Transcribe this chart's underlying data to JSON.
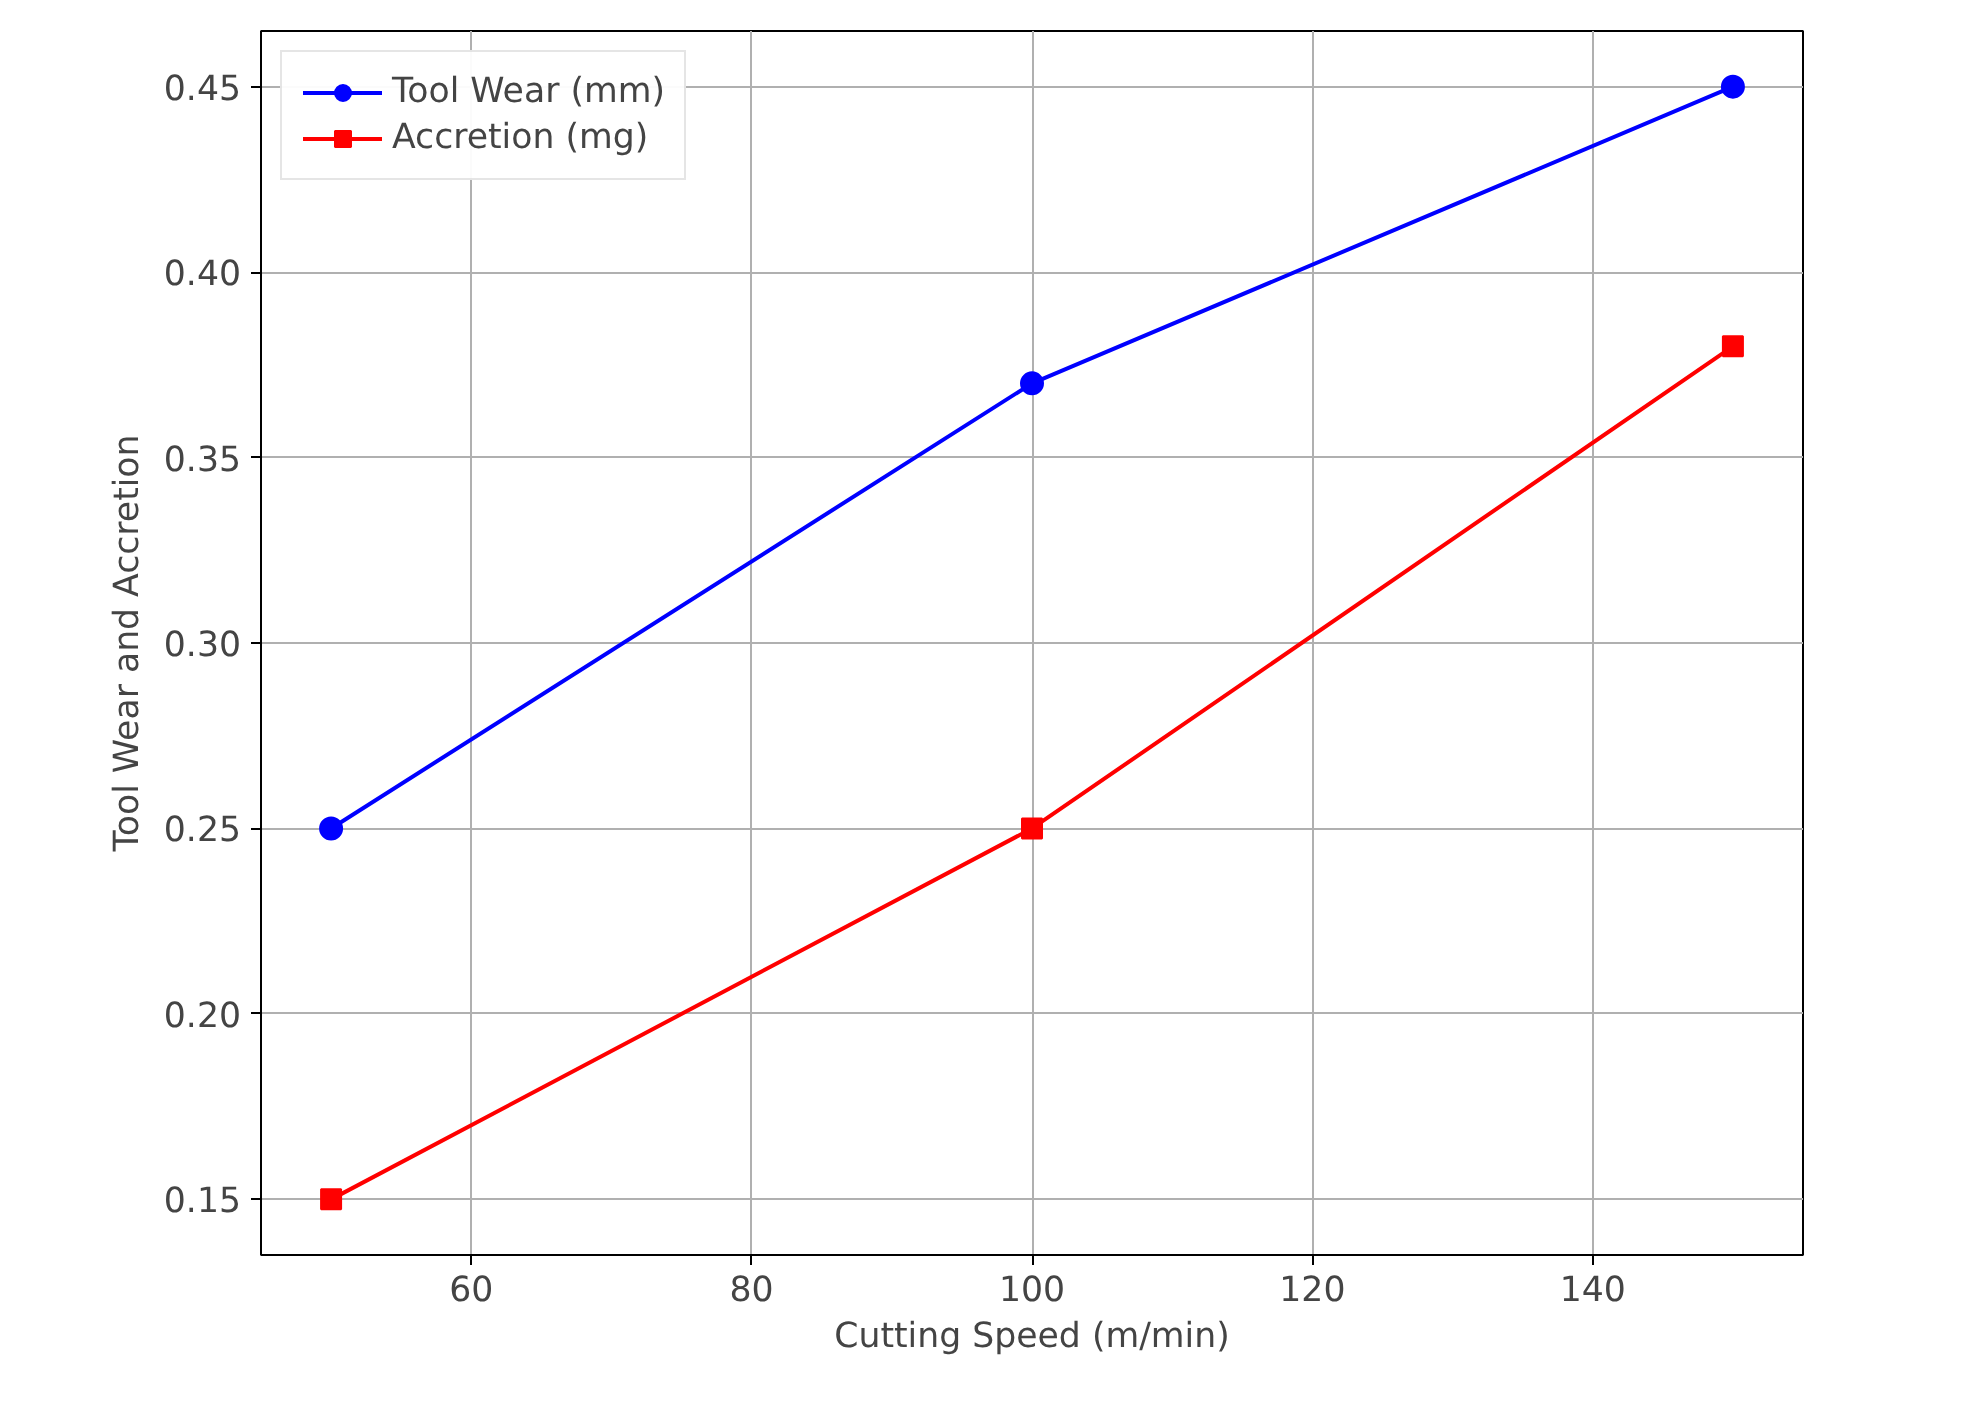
{
  "chart_data": {
    "type": "line",
    "xlabel": "Cutting Speed (m/min)",
    "ylabel": "Tool Wear and Accretion",
    "x": [
      50,
      100,
      150
    ],
    "series": [
      {
        "name": "Tool Wear (mm)",
        "color": "#0000ff",
        "marker": "circle",
        "values": [
          0.25,
          0.37,
          0.45
        ]
      },
      {
        "name": "Accretion (mg)",
        "color": "#ff0000",
        "marker": "square",
        "values": [
          0.15,
          0.25,
          0.38
        ]
      }
    ],
    "xlim": [
      45,
      155
    ],
    "xticks": [
      60,
      80,
      100,
      120,
      140
    ],
    "ylim": [
      0.135,
      0.465
    ],
    "yticks": [
      {
        "value": 0.15,
        "label": "0.15"
      },
      {
        "value": 0.2,
        "label": "0.20"
      },
      {
        "value": 0.25,
        "label": "0.25"
      },
      {
        "value": 0.3,
        "label": "0.30"
      },
      {
        "value": 0.35,
        "label": "0.35"
      },
      {
        "value": 0.4,
        "label": "0.40"
      },
      {
        "value": 0.45,
        "label": "0.45"
      }
    ],
    "grid": true,
    "legend": "top left",
    "line_style": "solid"
  }
}
